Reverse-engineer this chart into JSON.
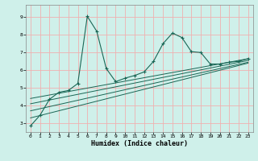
{
  "xlabel": "Humidex (Indice chaleur)",
  "bg_color": "#cff0ea",
  "grid_color": "#f0b0b0",
  "line_color": "#1a6655",
  "xlim": [
    -0.5,
    23.5
  ],
  "ylim": [
    2.5,
    9.7
  ],
  "xticks": [
    0,
    1,
    2,
    3,
    4,
    5,
    6,
    7,
    8,
    9,
    10,
    11,
    12,
    13,
    14,
    15,
    16,
    17,
    18,
    19,
    20,
    21,
    22,
    23
  ],
  "yticks": [
    3,
    4,
    5,
    6,
    7,
    8,
    9
  ],
  "main_line_x": [
    0,
    1,
    2,
    3,
    4,
    5,
    6,
    7,
    8,
    9,
    10,
    11,
    12,
    13,
    14,
    15,
    16,
    17,
    18,
    19,
    20,
    21,
    22,
    23
  ],
  "main_line_y": [
    2.85,
    3.45,
    4.35,
    4.75,
    4.85,
    5.25,
    9.05,
    8.2,
    6.1,
    5.35,
    5.55,
    5.7,
    5.9,
    6.5,
    7.5,
    8.1,
    7.85,
    7.05,
    7.0,
    6.35,
    6.35,
    6.45,
    6.5,
    6.65
  ],
  "reg_lines": [
    {
      "x": [
        0,
        23
      ],
      "y": [
        3.3,
        6.4
      ]
    },
    {
      "x": [
        0,
        23
      ],
      "y": [
        3.7,
        6.45
      ]
    },
    {
      "x": [
        0,
        23
      ],
      "y": [
        4.1,
        6.55
      ]
    },
    {
      "x": [
        0,
        23
      ],
      "y": [
        4.4,
        6.65
      ]
    }
  ]
}
